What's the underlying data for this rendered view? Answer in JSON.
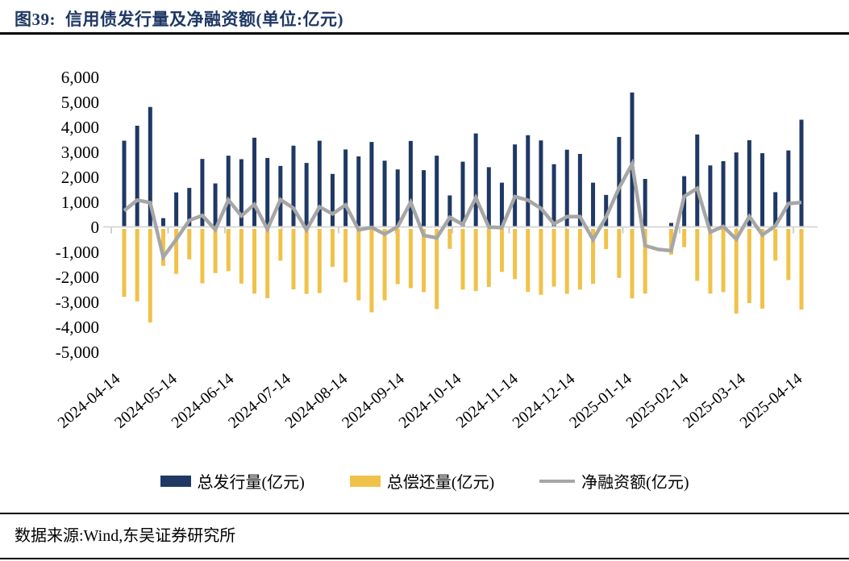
{
  "header": {
    "figure_label": "图39:",
    "title": "信用债发行量及净融资额(单位:亿元)"
  },
  "footer": {
    "source": "数据来源:Wind,东吴证券研究所"
  },
  "colors": {
    "issuance_bar": "#1f3864",
    "repayment_bar": "#f0c24a",
    "net_line": "#a6a6a6",
    "zero_axis": "#d9d9d9",
    "month_tick": "#bfbfbf",
    "title_text": "#1f3864",
    "rule": "#000000"
  },
  "chart_data": {
    "type": "bar",
    "note": "weekly credit-bond issuance vs repayment with net financing line; repayment plotted as negative bars",
    "x_labels": [
      "2024-04-14",
      "2024-05-14",
      "2024-06-14",
      "2024-07-14",
      "2024-08-14",
      "2024-09-14",
      "2024-10-14",
      "2024-11-14",
      "2024-12-14",
      "2025-01-14",
      "2025-02-14",
      "2025-03-14",
      "2025-04-14"
    ],
    "ylim": [
      -5000,
      6000
    ],
    "ytick_step": 1000,
    "grid": "zero-line-only",
    "legend_position": "bottom",
    "series": [
      {
        "name": "总发行量(亿元)",
        "type": "bar",
        "color": "#1f3864",
        "values": [
          3450,
          4050,
          4800,
          350,
          1380,
          1560,
          2720,
          1740,
          2850,
          2710,
          3570,
          2760,
          2440,
          3250,
          2560,
          3450,
          2120,
          3100,
          2820,
          3400,
          2650,
          2300,
          3440,
          2270,
          2850,
          1260,
          2610,
          3740,
          2390,
          1770,
          3300,
          3670,
          3460,
          2510,
          3090,
          2920,
          1770,
          1280,
          3600,
          5380,
          1920,
          null,
          160,
          2030,
          3700,
          2460,
          2630,
          2980,
          3470,
          2950,
          1390,
          3060,
          4290
        ]
      },
      {
        "name": "总偿还量(亿元)",
        "type": "bar",
        "color": "#f0c24a",
        "values": [
          -2800,
          -2980,
          -3830,
          -1560,
          -1880,
          -1300,
          -2260,
          -1850,
          -1770,
          -2270,
          -2670,
          -2850,
          -1350,
          -2500,
          -2680,
          -2650,
          -1600,
          -2220,
          -2940,
          -3420,
          -2940,
          -2290,
          -2450,
          -2610,
          -3290,
          -880,
          -2510,
          -2570,
          -2400,
          -1800,
          -2090,
          -2600,
          -2720,
          -2390,
          -2680,
          -2510,
          -2280,
          -890,
          -2040,
          -2860,
          -2670,
          null,
          -1110,
          -810,
          -2160,
          -2670,
          -2610,
          -3470,
          -3050,
          -3270,
          -1350,
          -2130,
          -3310
        ]
      },
      {
        "name": "净融资额(亿元)",
        "type": "line",
        "color": "#a6a6a6",
        "values": [
          650,
          1070,
          970,
          -1210,
          -500,
          260,
          460,
          -110,
          1080,
          440,
          900,
          -90,
          1090,
          750,
          -120,
          800,
          520,
          880,
          -120,
          -20,
          -290,
          10,
          990,
          -340,
          -440,
          380,
          100,
          1170,
          -10,
          -30,
          1210,
          1070,
          740,
          120,
          410,
          410,
          -510,
          390,
          1560,
          2520,
          -750,
          -900,
          -950,
          1220,
          1540,
          -210,
          20,
          -490,
          420,
          -320,
          40,
          930,
          980
        ]
      }
    ]
  }
}
